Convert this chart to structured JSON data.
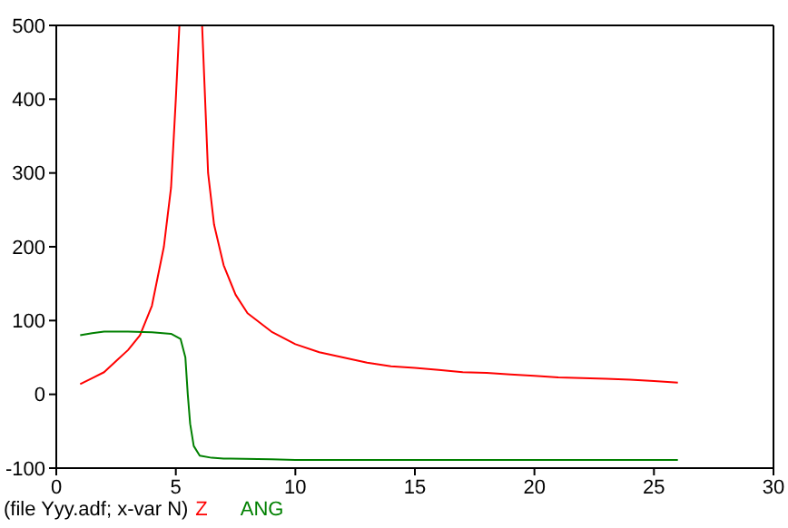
{
  "chart_data": {
    "type": "line",
    "xlim": [
      0,
      30
    ],
    "xticks": [
      0,
      5,
      10,
      15,
      20,
      25,
      30
    ],
    "ylim": [
      -100,
      500
    ],
    "yticks": [
      -100,
      0,
      100,
      200,
      300,
      400,
      500
    ],
    "legend": "bottom",
    "annotations": [
      "(file Yyy.adf; x-var N)"
    ],
    "series": [
      {
        "name": "Z",
        "color": "#ff0000",
        "x": [
          1,
          1.5,
          2,
          2.5,
          3,
          3.5,
          4,
          4.5,
          4.8,
          5,
          5.15,
          5.6,
          6.1,
          6.2,
          6.35,
          6.6,
          7,
          7.5,
          8,
          9,
          10,
          11,
          12,
          13,
          14,
          15,
          16,
          17,
          18,
          19,
          20,
          21,
          22,
          23,
          24,
          25,
          26
        ],
        "values": [
          14,
          22,
          30,
          45,
          60,
          80,
          120,
          200,
          280,
          400,
          500,
          null,
          500,
          420,
          300,
          230,
          175,
          135,
          110,
          85,
          68,
          57,
          50,
          43,
          38,
          36,
          33,
          30,
          29,
          27,
          25,
          23,
          22,
          21,
          20,
          18,
          16
        ]
      },
      {
        "name": "ANG",
        "color": "#008000",
        "x": [
          1,
          1.5,
          2,
          3,
          4,
          4.8,
          5.2,
          5.4,
          5.5,
          5.6,
          5.75,
          6,
          6.5,
          7,
          9,
          10,
          26
        ],
        "values": [
          80,
          83,
          85,
          85,
          84,
          82,
          75,
          50,
          0,
          -40,
          -70,
          -83,
          -86,
          -87,
          -88,
          -89,
          -89
        ]
      }
    ]
  }
}
